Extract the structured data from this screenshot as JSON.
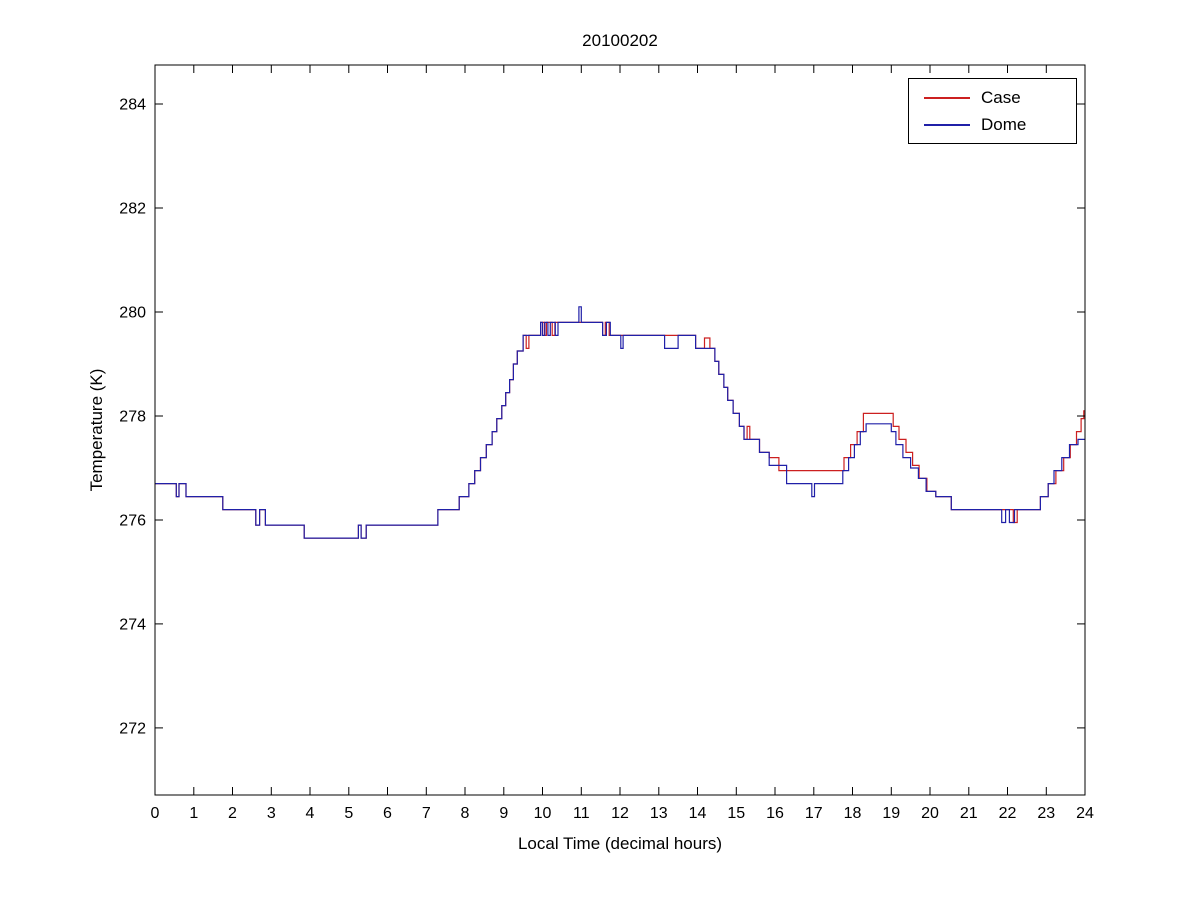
{
  "page": {
    "background": "#ffffff"
  },
  "chart_data": {
    "type": "line",
    "title": "20100202",
    "xlabel": "Local Time (decimal hours)",
    "ylabel": "Temperature (K)",
    "xlim": [
      0,
      24
    ],
    "ylim": [
      270.71,
      284.75
    ],
    "xticks": [
      0,
      1,
      2,
      3,
      4,
      5,
      6,
      7,
      8,
      9,
      10,
      11,
      12,
      13,
      14,
      15,
      16,
      17,
      18,
      19,
      20,
      21,
      22,
      23,
      24
    ],
    "yticks": [
      272,
      274,
      276,
      278,
      280,
      282,
      284
    ],
    "grid": false,
    "step_mode": "after",
    "legend_position": "top-right",
    "series": [
      {
        "name": "Case",
        "color": "#cc2020",
        "points": [
          [
            0.0,
            276.7
          ],
          [
            0.55,
            276.45
          ],
          [
            0.62,
            276.7
          ],
          [
            0.8,
            276.45
          ],
          [
            1.75,
            276.2
          ],
          [
            2.6,
            275.9
          ],
          [
            2.7,
            276.2
          ],
          [
            2.85,
            275.9
          ],
          [
            3.85,
            275.65
          ],
          [
            5.25,
            275.9
          ],
          [
            5.32,
            275.65
          ],
          [
            5.45,
            275.9
          ],
          [
            7.3,
            276.2
          ],
          [
            7.85,
            276.45
          ],
          [
            8.1,
            276.7
          ],
          [
            8.25,
            276.95
          ],
          [
            8.4,
            277.2
          ],
          [
            8.55,
            277.45
          ],
          [
            8.7,
            277.7
          ],
          [
            8.82,
            277.95
          ],
          [
            8.95,
            278.2
          ],
          [
            9.05,
            278.45
          ],
          [
            9.15,
            278.7
          ],
          [
            9.25,
            279.0
          ],
          [
            9.35,
            279.25
          ],
          [
            9.5,
            279.55
          ],
          [
            9.58,
            279.3
          ],
          [
            9.65,
            279.55
          ],
          [
            9.95,
            279.8
          ],
          [
            10.05,
            279.55
          ],
          [
            10.1,
            279.8
          ],
          [
            10.25,
            279.55
          ],
          [
            10.32,
            279.8
          ],
          [
            11.55,
            279.55
          ],
          [
            11.62,
            279.8
          ],
          [
            11.72,
            279.55
          ],
          [
            13.95,
            279.3
          ],
          [
            14.18,
            279.5
          ],
          [
            14.32,
            279.3
          ],
          [
            14.45,
            279.05
          ],
          [
            14.55,
            278.8
          ],
          [
            14.68,
            278.55
          ],
          [
            14.78,
            278.3
          ],
          [
            14.92,
            278.05
          ],
          [
            15.08,
            277.8
          ],
          [
            15.2,
            277.55
          ],
          [
            15.28,
            277.8
          ],
          [
            15.35,
            277.55
          ],
          [
            15.6,
            277.3
          ],
          [
            15.85,
            277.2
          ],
          [
            16.1,
            276.95
          ],
          [
            17.78,
            277.2
          ],
          [
            17.95,
            277.45
          ],
          [
            18.12,
            277.7
          ],
          [
            18.28,
            278.05
          ],
          [
            19.05,
            277.8
          ],
          [
            19.2,
            277.55
          ],
          [
            19.38,
            277.3
          ],
          [
            19.55,
            277.05
          ],
          [
            19.72,
            276.8
          ],
          [
            19.92,
            276.55
          ],
          [
            20.15,
            276.45
          ],
          [
            20.55,
            276.2
          ],
          [
            22.15,
            275.95
          ],
          [
            22.25,
            276.2
          ],
          [
            22.85,
            276.45
          ],
          [
            23.05,
            276.7
          ],
          [
            23.25,
            276.95
          ],
          [
            23.45,
            277.2
          ],
          [
            23.62,
            277.45
          ],
          [
            23.78,
            277.7
          ],
          [
            23.9,
            277.95
          ],
          [
            23.97,
            278.1
          ],
          [
            24,
            278.1
          ]
        ]
      },
      {
        "name": "Dome",
        "color": "#2020a8",
        "points": [
          [
            0.0,
            276.7
          ],
          [
            0.55,
            276.45
          ],
          [
            0.62,
            276.7
          ],
          [
            0.8,
            276.45
          ],
          [
            1.75,
            276.2
          ],
          [
            2.6,
            275.9
          ],
          [
            2.7,
            276.2
          ],
          [
            2.85,
            275.9
          ],
          [
            3.85,
            275.65
          ],
          [
            5.25,
            275.9
          ],
          [
            5.32,
            275.65
          ],
          [
            5.45,
            275.9
          ],
          [
            7.3,
            276.2
          ],
          [
            7.85,
            276.45
          ],
          [
            8.1,
            276.7
          ],
          [
            8.25,
            276.95
          ],
          [
            8.4,
            277.2
          ],
          [
            8.55,
            277.45
          ],
          [
            8.7,
            277.7
          ],
          [
            8.82,
            277.95
          ],
          [
            8.95,
            278.2
          ],
          [
            9.05,
            278.45
          ],
          [
            9.15,
            278.7
          ],
          [
            9.25,
            279.0
          ],
          [
            9.35,
            279.25
          ],
          [
            9.5,
            279.55
          ],
          [
            9.95,
            279.8
          ],
          [
            10.0,
            279.55
          ],
          [
            10.06,
            279.8
          ],
          [
            10.14,
            279.55
          ],
          [
            10.2,
            279.8
          ],
          [
            10.33,
            279.55
          ],
          [
            10.4,
            279.8
          ],
          [
            10.94,
            280.1
          ],
          [
            11.0,
            279.8
          ],
          [
            11.55,
            279.55
          ],
          [
            11.65,
            279.8
          ],
          [
            11.75,
            279.55
          ],
          [
            12.02,
            279.3
          ],
          [
            12.08,
            279.55
          ],
          [
            13.15,
            279.3
          ],
          [
            13.5,
            279.55
          ],
          [
            13.95,
            279.3
          ],
          [
            14.45,
            279.05
          ],
          [
            14.55,
            278.8
          ],
          [
            14.68,
            278.55
          ],
          [
            14.78,
            278.3
          ],
          [
            14.92,
            278.05
          ],
          [
            15.08,
            277.8
          ],
          [
            15.2,
            277.55
          ],
          [
            15.6,
            277.3
          ],
          [
            15.85,
            277.05
          ],
          [
            16.3,
            276.7
          ],
          [
            16.95,
            276.45
          ],
          [
            17.02,
            276.7
          ],
          [
            17.75,
            276.95
          ],
          [
            17.9,
            277.2
          ],
          [
            18.05,
            277.45
          ],
          [
            18.2,
            277.7
          ],
          [
            18.35,
            277.85
          ],
          [
            19.0,
            277.7
          ],
          [
            19.12,
            277.45
          ],
          [
            19.3,
            277.2
          ],
          [
            19.5,
            277.0
          ],
          [
            19.7,
            276.8
          ],
          [
            19.9,
            276.55
          ],
          [
            20.15,
            276.45
          ],
          [
            20.55,
            276.2
          ],
          [
            21.85,
            275.95
          ],
          [
            21.95,
            276.2
          ],
          [
            22.05,
            275.95
          ],
          [
            22.18,
            276.2
          ],
          [
            22.85,
            276.45
          ],
          [
            23.05,
            276.7
          ],
          [
            23.2,
            276.95
          ],
          [
            23.4,
            277.2
          ],
          [
            23.6,
            277.45
          ],
          [
            23.82,
            277.55
          ],
          [
            24,
            277.55
          ]
        ]
      }
    ]
  }
}
